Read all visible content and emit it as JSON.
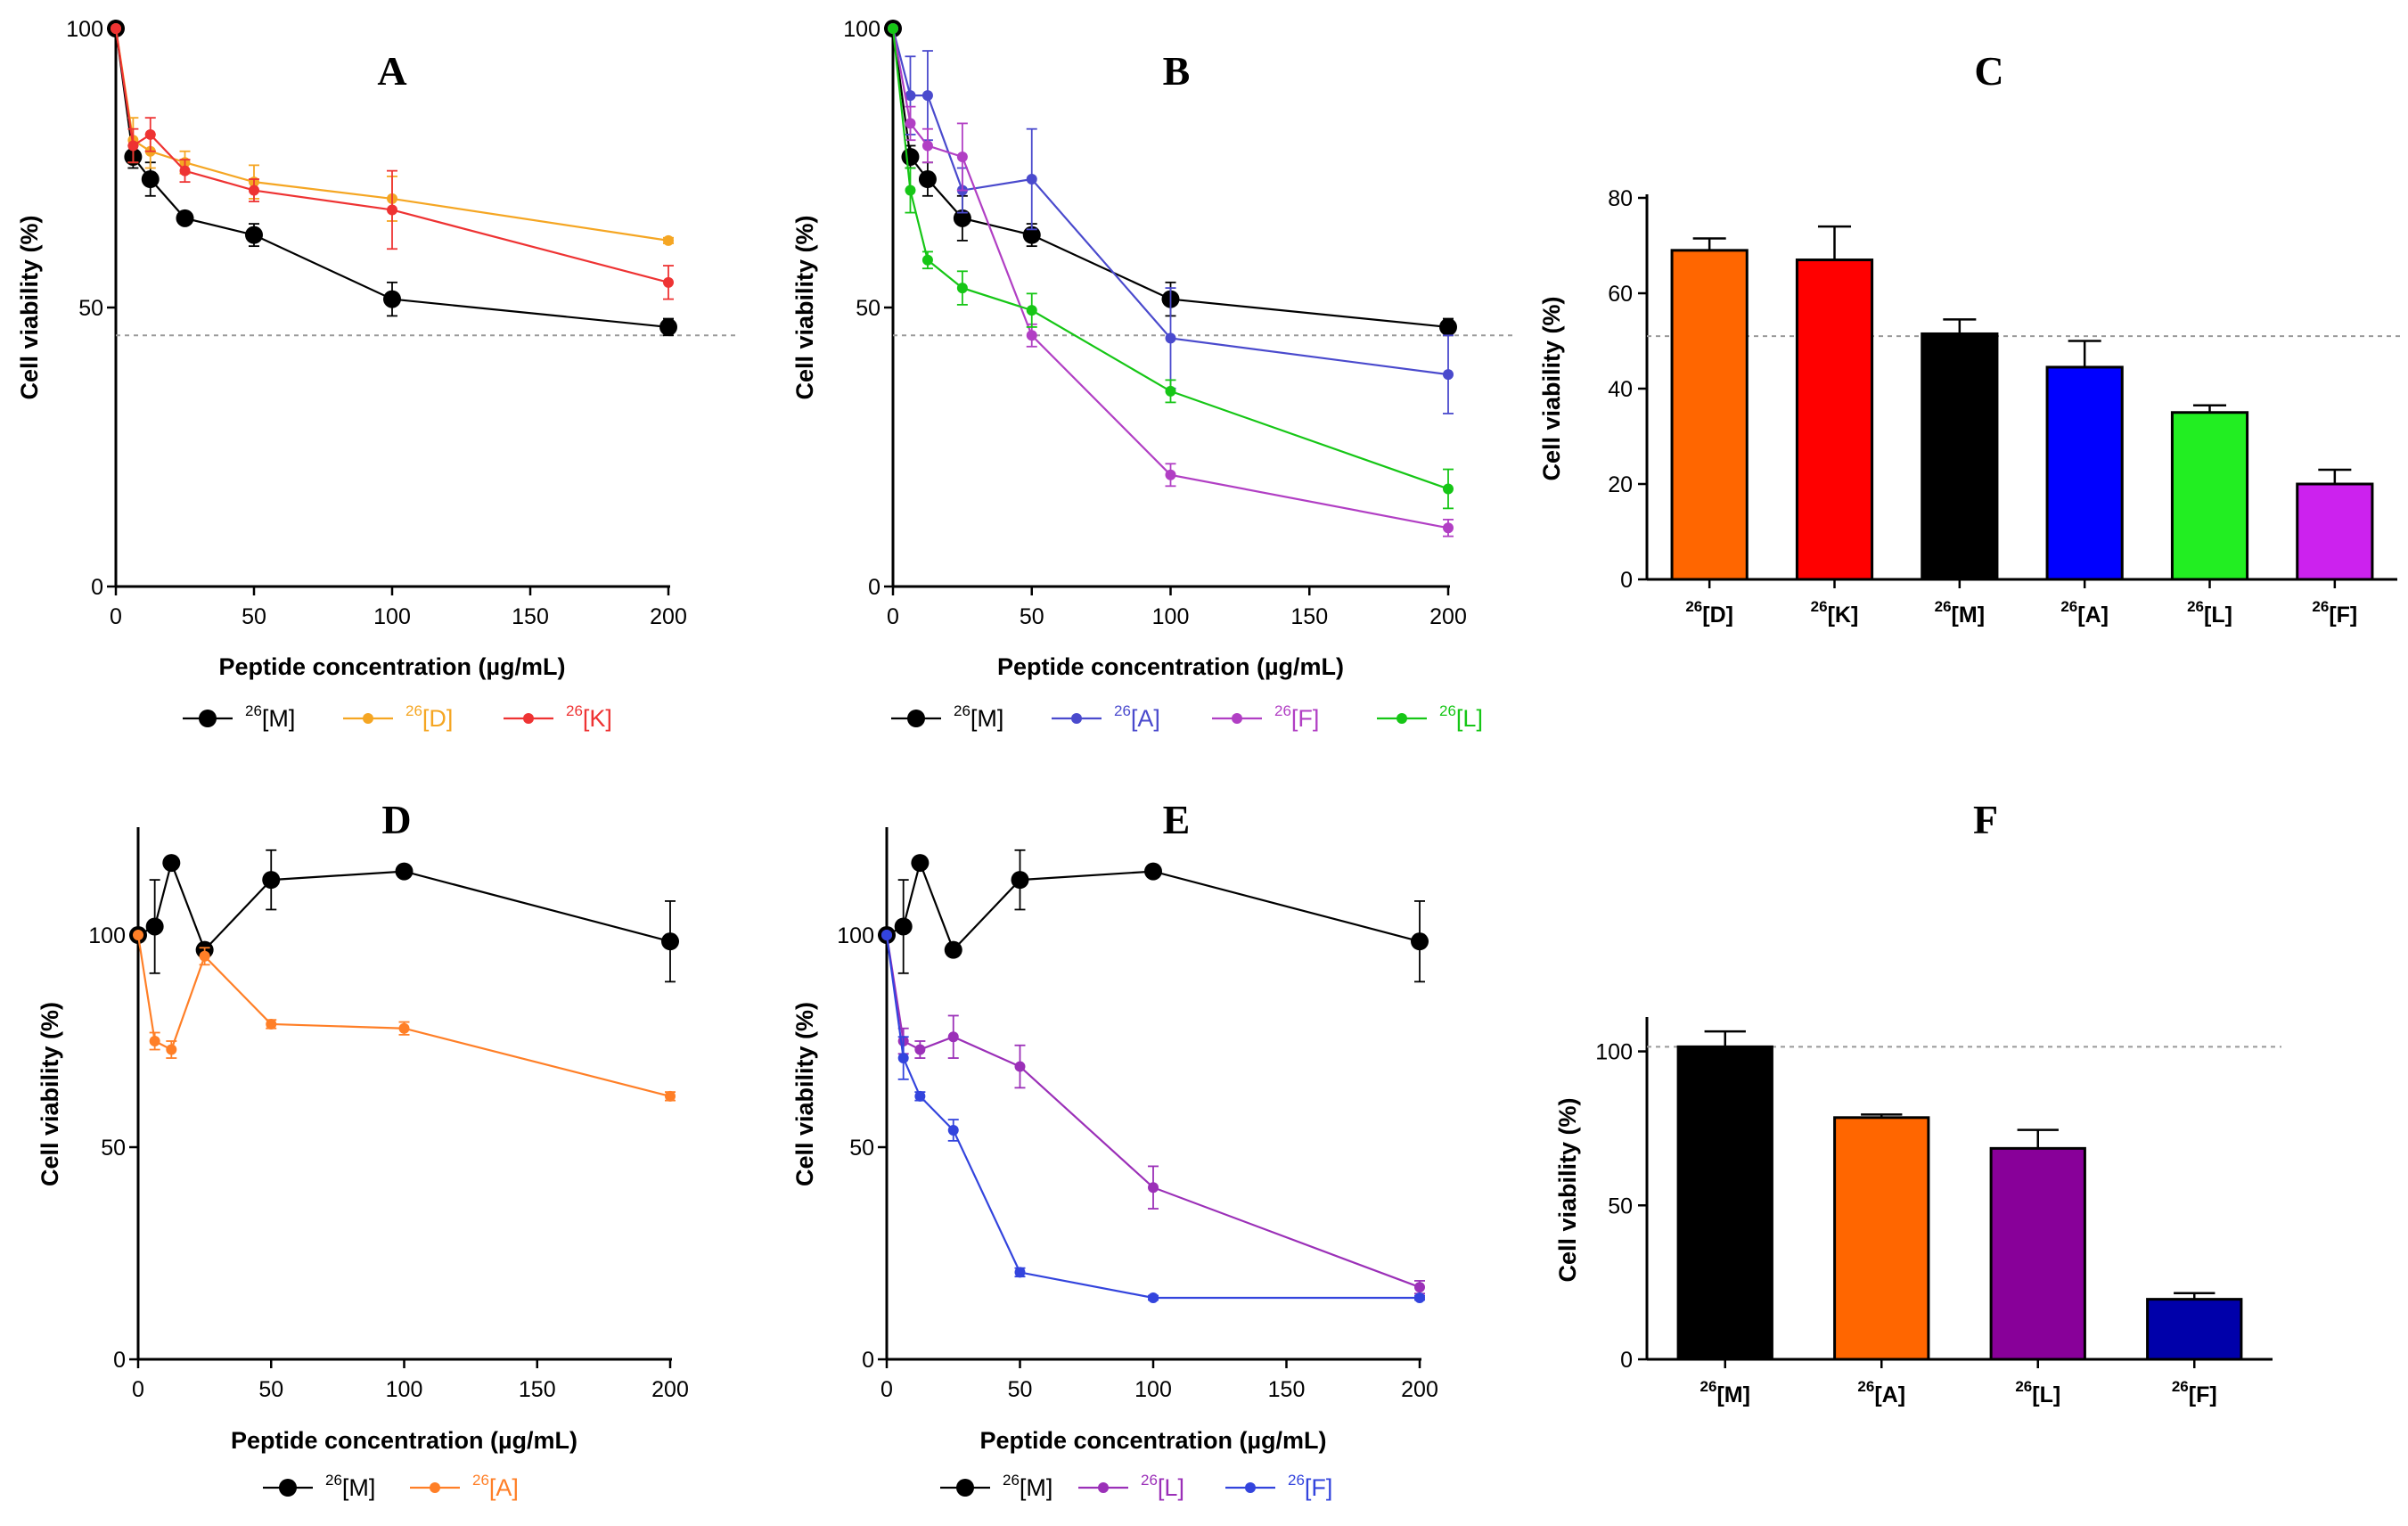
{
  "panels": [
    {
      "id": "A",
      "chart_data": {
        "type": "line",
        "title": "A",
        "xlabel": "Peptide concentration (µg/mL)",
        "ylabel": "Cell viability (%)",
        "xlim": [
          0,
          200
        ],
        "ylim": [
          0,
          100
        ],
        "xticks": [
          0,
          50,
          100,
          150,
          200
        ],
        "yticks": [
          0,
          50,
          100
        ],
        "reference_line": 45,
        "series": [
          {
            "sup": "26",
            "name": "[M]",
            "color": "#000000",
            "marker": "circle",
            "x": [
              0,
              6.25,
              12.5,
              25,
              50,
              100,
              200
            ],
            "y": [
              100,
              77,
              73,
              66,
              63,
              51.5,
              46.5
            ],
            "err": [
              0,
              2,
              3,
              1,
              2,
              3,
              1.5
            ]
          },
          {
            "sup": "26",
            "name": "[D]",
            "color": "#f5a623",
            "marker": "small",
            "x": [
              0,
              6.25,
              12.5,
              25,
              50,
              100,
              200
            ],
            "y": [
              100,
              80,
              78,
              76,
              72.5,
              69.5,
              62
            ],
            "err": [
              0,
              4,
              3,
              2,
              3,
              4,
              0.5
            ]
          },
          {
            "sup": "26",
            "name": "[K]",
            "color": "#ee3333",
            "marker": "small",
            "x": [
              0,
              6.25,
              12.5,
              25,
              50,
              100,
              200
            ],
            "y": [
              100,
              79,
              81,
              74.5,
              71,
              67.5,
              54.5
            ],
            "err": [
              0,
              3,
              3,
              2,
              2,
              7,
              3
            ]
          }
        ]
      }
    },
    {
      "id": "B",
      "chart_data": {
        "type": "line",
        "title": "B",
        "xlabel": "Peptide concentration (µg/mL)",
        "ylabel": "Cell viability (%)",
        "xlim": [
          0,
          200
        ],
        "ylim": [
          0,
          100
        ],
        "xticks": [
          0,
          50,
          100,
          150,
          200
        ],
        "yticks": [
          0,
          50,
          100
        ],
        "reference_line": 45,
        "series": [
          {
            "sup": "26",
            "name": "[M]",
            "color": "#000000",
            "marker": "circle",
            "x": [
              0,
              6.25,
              12.5,
              25,
              50,
              100,
              200
            ],
            "y": [
              100,
              77,
              73,
              66,
              63,
              51.5,
              46.5
            ],
            "err": [
              0,
              2,
              3,
              4,
              2,
              3,
              1.5
            ]
          },
          {
            "sup": "26",
            "name": "[A]",
            "color": "#4a4acd",
            "marker": "small",
            "x": [
              0,
              6.25,
              12.5,
              25,
              50,
              100,
              200
            ],
            "y": [
              100,
              88,
              88,
              71,
              73,
              44.5,
              38
            ],
            "err": [
              0,
              7,
              8,
              4,
              9,
              9,
              7
            ]
          },
          {
            "sup": "26",
            "name": "[F]",
            "color": "#b13fc4",
            "marker": "small",
            "x": [
              0,
              6.25,
              12.5,
              25,
              50,
              100,
              200
            ],
            "y": [
              100,
              83,
              79,
              77,
              45,
              20,
              10.5
            ],
            "err": [
              0,
              3,
              3,
              6,
              2,
              2,
              1.5
            ]
          },
          {
            "sup": "26",
            "name": "[L]",
            "color": "#16c616",
            "marker": "small",
            "x": [
              0,
              6.25,
              12.5,
              25,
              50,
              100,
              200
            ],
            "y": [
              100,
              71,
              58.5,
              53.5,
              49.5,
              35,
              17.5
            ],
            "err": [
              0,
              4,
              1.5,
              3,
              3,
              2,
              3.5
            ]
          }
        ]
      }
    },
    {
      "id": "C",
      "chart_data": {
        "type": "bar",
        "title": "C",
        "xlabel": "",
        "ylabel": "Cell viability (%)",
        "ylim": [
          0,
          80
        ],
        "yticks": [
          0,
          20,
          40,
          60,
          80
        ],
        "reference_line": 51,
        "categories": [
          {
            "sup": "26",
            "label": "[D]"
          },
          {
            "sup": "26",
            "label": "[K]"
          },
          {
            "sup": "26",
            "label": "[M]"
          },
          {
            "sup": "26",
            "label": "[A]"
          },
          {
            "sup": "26",
            "label": "[L]"
          },
          {
            "sup": "26",
            "label": "[F]"
          }
        ],
        "values": [
          69,
          67,
          51.5,
          44.5,
          35,
          20
        ],
        "errors": [
          2.5,
          7,
          3,
          5.5,
          1.5,
          3
        ],
        "colors": [
          "#ff6600",
          "#ff0000",
          "#000000",
          "#0000ff",
          "#22ee22",
          "#cc22ee"
        ]
      }
    },
    {
      "id": "D",
      "chart_data": {
        "type": "line",
        "title": "D",
        "xlabel": "Peptide concentration (µg/mL)",
        "ylabel": "Cell viability (%)",
        "xlim": [
          0,
          200
        ],
        "ylim": [
          0,
          125
        ],
        "xticks": [
          0,
          50,
          100,
          150,
          200
        ],
        "yticks": [
          0,
          50,
          100
        ],
        "series": [
          {
            "sup": "26",
            "name": "[M]",
            "color": "#000000",
            "marker": "circle",
            "x": [
              0,
              6.25,
              12.5,
              25,
              50,
              100,
              200
            ],
            "y": [
              100,
              102,
              117,
              96.5,
              113,
              115,
              98.5
            ],
            "err": [
              0,
              11,
              1,
              1,
              7,
              1,
              9.5
            ]
          },
          {
            "sup": "26",
            "name": "[A]",
            "color": "#ff7f27",
            "marker": "small",
            "x": [
              0,
              6.25,
              12.5,
              25,
              50,
              100,
              200
            ],
            "y": [
              100,
              75,
              73,
              95,
              79,
              78,
              62
            ],
            "err": [
              0,
              2,
              2,
              2,
              1,
              1.5,
              1
            ]
          }
        ]
      }
    },
    {
      "id": "E",
      "chart_data": {
        "type": "line",
        "title": "E",
        "xlabel": "Peptide concentration (µg/mL)",
        "ylabel": "Cell viability (%)",
        "xlim": [
          0,
          200
        ],
        "ylim": [
          0,
          125
        ],
        "xticks": [
          0,
          50,
          100,
          150,
          200
        ],
        "yticks": [
          0,
          50,
          100
        ],
        "series": [
          {
            "sup": "26",
            "name": "[M]",
            "color": "#000000",
            "marker": "circle",
            "x": [
              0,
              6.25,
              12.5,
              25,
              50,
              100,
              200
            ],
            "y": [
              100,
              102,
              117,
              96.5,
              113,
              115,
              98.5
            ],
            "err": [
              0,
              11,
              1,
              1,
              7,
              1,
              9.5
            ]
          },
          {
            "sup": "26",
            "name": "[L]",
            "color": "#9b30b8",
            "marker": "small",
            "x": [
              0,
              6.25,
              12.5,
              25,
              50,
              100,
              200
            ],
            "y": [
              100,
              75,
              73,
              76,
              69,
              40.5,
              17
            ],
            "err": [
              0,
              3,
              2,
              5,
              5,
              5,
              1.5
            ]
          },
          {
            "sup": "26",
            "name": "[F]",
            "color": "#3344dd",
            "marker": "small",
            "x": [
              0,
              6.25,
              12.5,
              25,
              50,
              100,
              200
            ],
            "y": [
              100,
              71,
              62,
              54,
              20.5,
              14.5,
              14.5
            ],
            "err": [
              0,
              5,
              1,
              2.5,
              1,
              0.5,
              0.5
            ]
          }
        ]
      }
    },
    {
      "id": "F",
      "chart_data": {
        "type": "bar",
        "title": "F",
        "xlabel": "",
        "ylabel": "Cell viability (%)",
        "ylim": [
          0,
          110
        ],
        "yticks": [
          0,
          50,
          100
        ],
        "reference_line": 101.5,
        "categories": [
          {
            "sup": "26",
            "label": "[M]"
          },
          {
            "sup": "26",
            "label": "[A]"
          },
          {
            "sup": "26",
            "label": "[L]"
          },
          {
            "sup": "26",
            "label": "[F]"
          }
        ],
        "values": [
          101.5,
          78.5,
          68.5,
          19.5
        ],
        "errors": [
          5,
          1,
          6,
          2
        ],
        "colors": [
          "#000000",
          "#ff6600",
          "#880099",
          "#0000aa"
        ]
      }
    }
  ]
}
